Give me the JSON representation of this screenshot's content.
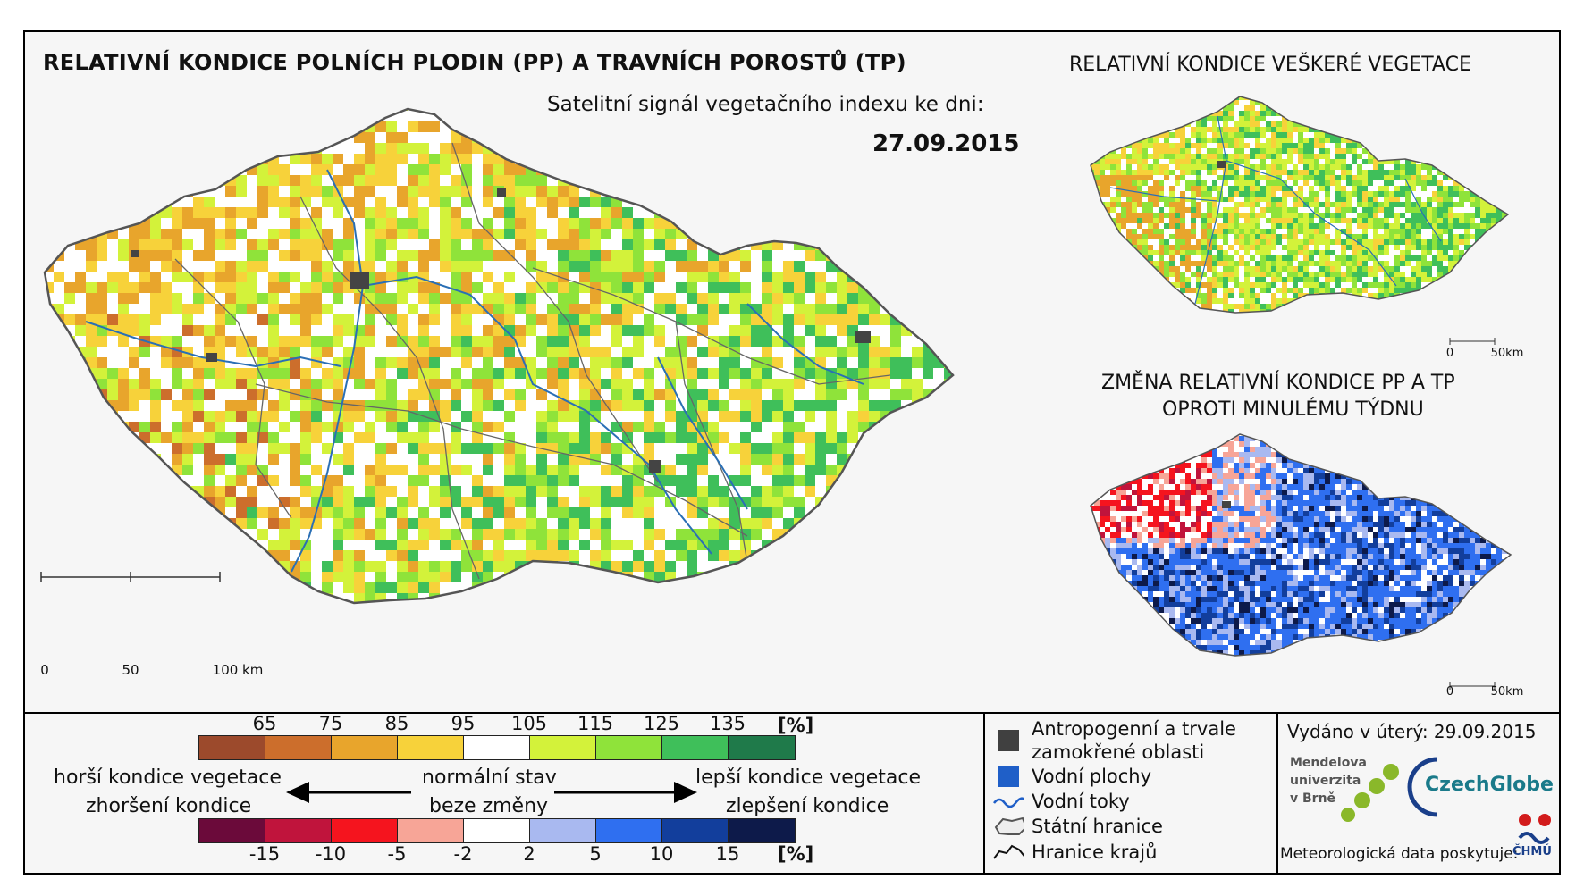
{
  "header": {
    "title": "RELATIVNÍ KONDICE POLNÍCH PLODIN (PP) A TRAVNÍCH POROSTŮ (TP)",
    "subtitle": "Satelitní signál vegetačního indexu ke dni:",
    "date": "27.09.2015"
  },
  "inset_top": {
    "title": "RELATIVNÍ KONDICE VEŠKERÉ VEGETACE",
    "scale": {
      "zero": "0",
      "end": "50km"
    }
  },
  "inset_bottom": {
    "title_line1": "ZMĚNA RELATIVNÍ KONDICE PP A TP",
    "title_line2": "OPROTI MINULÉMU TÝDNU",
    "scale": {
      "zero": "0",
      "end": "50km"
    }
  },
  "main_scale": {
    "t0": "0",
    "t1": "50",
    "t2": "100 km"
  },
  "legend_condition": {
    "ticks": [
      "65",
      "75",
      "85",
      "95",
      "105",
      "115",
      "125",
      "135"
    ],
    "unit": "[%]",
    "colors": [
      "#9c4a2c",
      "#cc6e2c",
      "#e8a52c",
      "#f7d23a",
      "#ffffff",
      "#d3f23a",
      "#8fe33a",
      "#3fbf5a",
      "#1f7a4a"
    ]
  },
  "legend_change": {
    "ticks": [
      "-15",
      "-10",
      "-5",
      "-2",
      "2",
      "5",
      "10",
      "15"
    ],
    "unit": "[%]",
    "colors": [
      "#6b0a3a",
      "#c0143c",
      "#f5141e",
      "#f7a597",
      "#ffffff",
      "#a9b9f0",
      "#2f6ff0",
      "#123e9c",
      "#0d1a4a"
    ]
  },
  "legend_text": {
    "worse1": "horší kondice vegetace",
    "worse2": "zhoršení kondice",
    "normal1": "normální stav",
    "normal2": "beze změny",
    "better1": "lepší kondice vegetace",
    "better2": "zlepšení kondice"
  },
  "map_key": {
    "anthropogenic1": "Antropogenní a trvale",
    "anthropogenic2": "zamokřené oblasti",
    "water_bodies": "Vodní plochy",
    "streams": "Vodní toky",
    "state_border": "Státní hranice",
    "region_border": "Hranice krajů"
  },
  "footer": {
    "issued": "Vydáno v úterý: 29.09.2015",
    "mendel_l1": "Mendelova",
    "mendel_l2": "univerzita",
    "mendel_l3": "v Brně",
    "czechglobe": "CzechGlobe",
    "data_by": "Meteorologická data poskytuje:",
    "chmu": "ČHMÚ"
  }
}
